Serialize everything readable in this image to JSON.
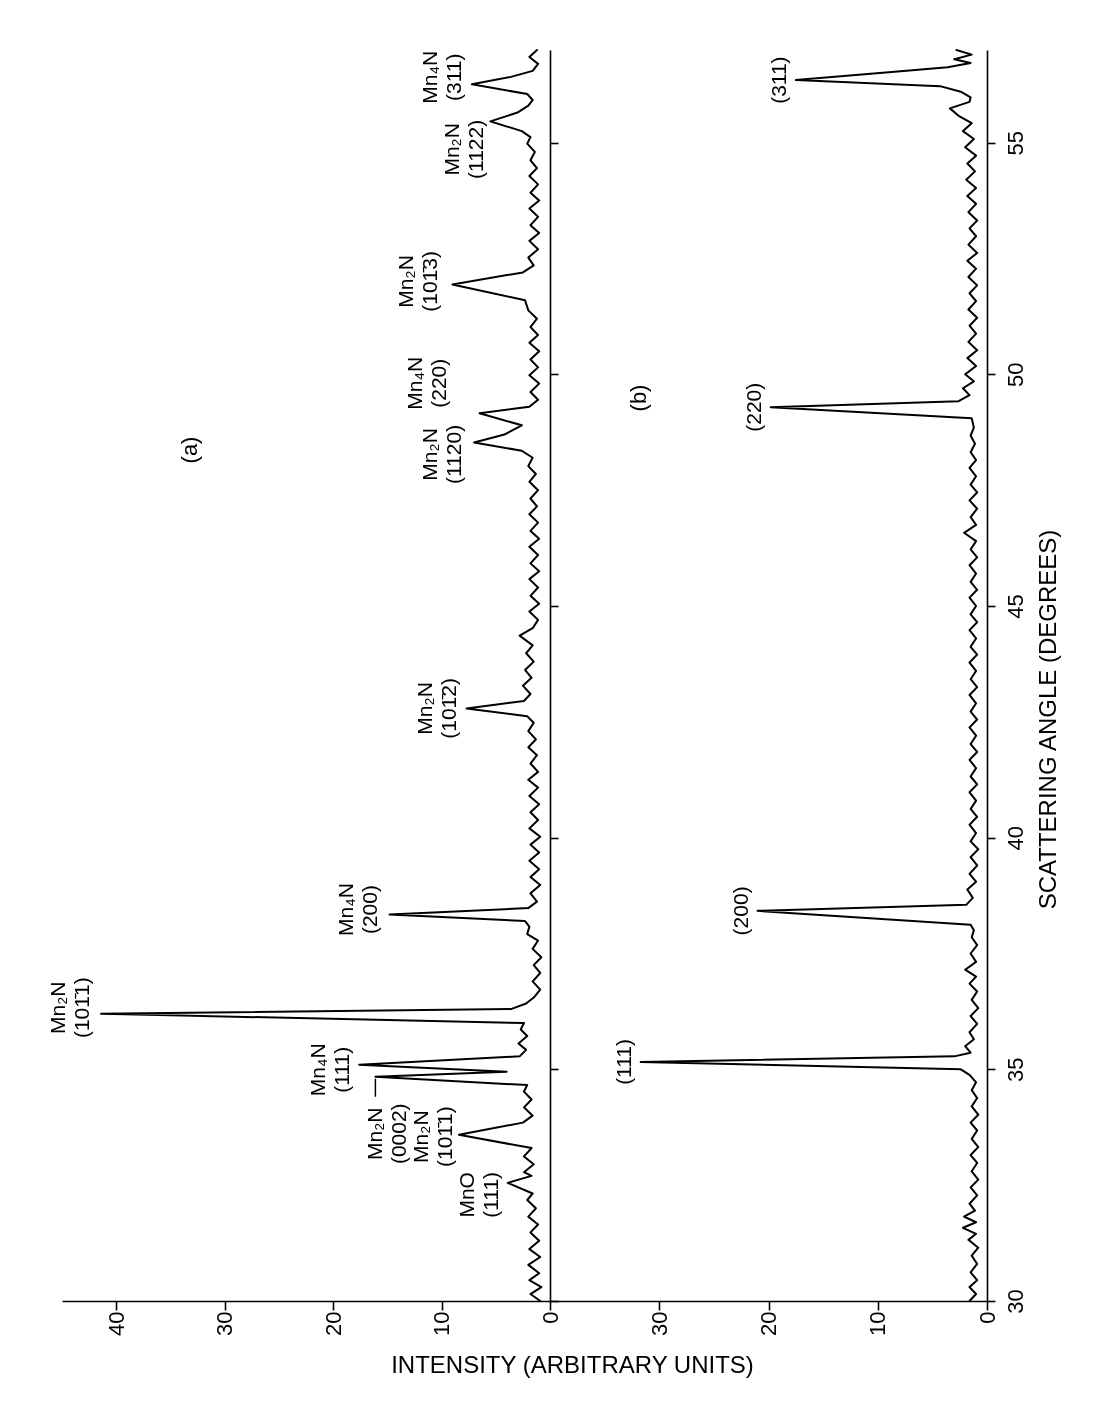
{
  "chart_data": [
    {
      "type": "line",
      "title": "(a)",
      "xlabel": "INTENSITY (ARBITRARY UNITS)",
      "color": "#000000",
      "values": [
        30.0,
        30.15,
        30.3,
        30.45,
        30.6,
        30.78,
        30.95,
        31.12,
        31.3,
        31.48,
        31.65,
        31.82,
        32.0,
        32.18,
        32.32,
        32.55,
        32.7,
        32.78,
        32.95,
        33.12,
        33.3,
        33.59,
        33.85,
        34.0,
        34.18,
        34.35,
        34.52,
        34.66,
        34.84,
        34.95,
        35.1,
        35.28,
        35.42,
        35.56,
        35.72,
        35.86,
        36.0,
        36.2,
        36.3,
        36.42,
        36.55,
        36.72,
        36.9,
        37.08,
        37.25,
        37.42,
        37.6,
        37.78,
        37.92,
        38.08,
        38.2,
        38.34,
        38.48,
        38.62,
        38.8,
        38.98,
        39.15,
        39.32,
        39.5,
        39.68,
        39.85,
        40.02,
        40.2,
        40.38,
        40.55,
        40.72,
        40.9,
        41.08,
        41.25,
        41.42,
        41.6,
        41.78,
        41.95,
        42.12,
        42.3,
        42.48,
        42.62,
        42.79,
        42.95,
        43.1,
        43.28,
        43.45,
        43.62,
        43.8,
        43.98,
        44.15,
        44.36,
        44.52,
        44.7,
        44.88,
        45.05,
        45.22,
        45.4,
        45.58,
        45.75,
        45.92,
        46.1,
        46.28,
        46.45,
        46.62,
        46.8,
        46.98,
        47.15,
        47.32,
        47.5,
        47.68,
        47.85,
        48.02,
        48.2,
        48.35,
        48.53,
        48.7,
        48.9,
        49.16,
        49.3,
        49.45,
        49.62,
        49.8,
        49.98,
        50.15,
        50.32,
        50.5,
        50.68,
        50.85,
        51.02,
        51.2,
        51.38,
        51.6,
        51.94,
        52.2,
        52.35,
        52.52,
        52.7,
        52.88,
        53.05,
        53.22,
        53.4,
        53.58,
        53.75,
        53.92,
        54.1,
        54.28,
        54.45,
        54.62,
        54.8,
        54.98,
        55.12,
        55.25,
        55.46,
        55.65,
        55.8,
        55.92,
        56.05,
        56.26,
        56.42,
        56.55,
        56.7,
        56.85,
        57.0
      ],
      "x": [
        0.9,
        1.8,
        0.8,
        1.9,
        1.0,
        2.0,
        0.9,
        1.9,
        1.0,
        1.8,
        1.1,
        2.0,
        1.3,
        2.1,
        1.6,
        3.9,
        1.7,
        2.4,
        1.5,
        2.4,
        1.7,
        8.4,
        2.5,
        1.6,
        2.4,
        1.7,
        2.4,
        2.1,
        16.1,
        4.0,
        17.6,
        2.8,
        2.2,
        2.9,
        2.1,
        2.7,
        2.4,
        41.4,
        3.6,
        2.2,
        1.5,
        0.9,
        1.6,
        0.9,
        1.5,
        0.8,
        1.6,
        1.1,
        2.1,
        1.9,
        2.3,
        14.8,
        2.0,
        1.2,
        1.8,
        0.9,
        1.8,
        1.0,
        1.9,
        1.0,
        1.8,
        0.9,
        1.9,
        1.1,
        1.8,
        1.0,
        1.9,
        1.1,
        2.0,
        1.1,
        1.8,
        1.2,
        2.0,
        1.3,
        2.0,
        1.5,
        2.1,
        7.7,
        2.4,
        1.8,
        2.5,
        1.7,
        2.3,
        1.5,
        2.2,
        1.6,
        2.8,
        1.6,
        1.1,
        1.9,
        1.0,
        1.8,
        1.1,
        1.9,
        1.0,
        1.8,
        1.1,
        1.9,
        1.0,
        1.8,
        1.1,
        1.9,
        1.2,
        1.8,
        1.1,
        1.9,
        1.3,
        2.0,
        1.6,
        2.6,
        7.0,
        4.2,
        2.6,
        6.5,
        1.9,
        1.1,
        1.8,
        1.0,
        1.9,
        1.1,
        1.8,
        1.0,
        1.9,
        1.1,
        1.8,
        1.2,
        2.0,
        2.3,
        9.0,
        2.5,
        1.5,
        2.0,
        1.1,
        1.9,
        1.0,
        1.8,
        1.1,
        1.9,
        1.0,
        1.8,
        1.1,
        1.9,
        1.2,
        1.8,
        1.4,
        2.1,
        1.8,
        2.6,
        5.5,
        3.0,
        2.0,
        1.6,
        2.1,
        7.2,
        3.6,
        1.6,
        1.1,
        1.9,
        1.2
      ],
      "xlim": [
        45,
        0
      ],
      "xticks": [
        40,
        30,
        20,
        10,
        0
      ],
      "ylim": [
        30,
        57
      ],
      "yticks": [
        30,
        35,
        40,
        45,
        50,
        55
      ],
      "tick_labels": "x",
      "annotations": [
        {
          "text": "MnO (111)",
          "x": 3.9,
          "y": 32.55
        },
        {
          "text": "Mn₂N (101̄1)",
          "x": 8.4,
          "y": 33.59
        },
        {
          "text": "Mn₂N (0002)",
          "x": 16.1,
          "y": 34.84
        },
        {
          "text": "Mn₄N (111)",
          "x": 17.6,
          "y": 35.1
        },
        {
          "text": "Mn₂N (101̄1)",
          "x": 41.4,
          "y": 36.2
        },
        {
          "text": "Mn₄N (200)",
          "x": 14.8,
          "y": 38.34
        },
        {
          "text": "Mn₂N (101̄2)",
          "x": 7.7,
          "y": 42.79
        },
        {
          "text": "Mn₂N (1120)",
          "x": 7.0,
          "y": 48.53
        },
        {
          "text": "Mn₄N (220)",
          "x": 6.5,
          "y": 49.16
        },
        {
          "text": "Mn₂N (101̄3)",
          "x": 9.0,
          "y": 51.94
        },
        {
          "text": "Mn₂N (1122)",
          "x": 5.5,
          "y": 55.46
        },
        {
          "text": "Mn₄N (311)",
          "x": 7.2,
          "y": 56.26
        }
      ]
    },
    {
      "type": "line",
      "title": "(b)",
      "ylabel": "SCATTERING ANGLE (DEGREES)",
      "color": "#000000",
      "values": [
        30.0,
        30.15,
        30.3,
        30.45,
        30.62,
        30.8,
        30.98,
        31.15,
        31.32,
        31.45,
        31.58,
        31.7,
        31.82,
        31.95,
        32.1,
        32.28,
        32.45,
        32.62,
        32.8,
        32.98,
        33.15,
        33.32,
        33.5,
        33.68,
        33.85,
        34.02,
        34.2,
        34.38,
        34.55,
        34.72,
        34.88,
        35.0,
        35.16,
        35.28,
        35.36,
        35.5,
        35.65,
        35.8,
        35.98,
        36.15,
        36.32,
        36.5,
        36.68,
        36.85,
        37.0,
        37.15,
        37.32,
        37.5,
        37.68,
        37.85,
        38.0,
        38.12,
        38.42,
        38.55,
        38.7,
        38.88,
        39.05,
        39.22,
        39.4,
        39.58,
        39.75,
        39.92,
        40.1,
        40.28,
        40.45,
        40.62,
        40.8,
        40.98,
        41.15,
        41.32,
        41.5,
        41.68,
        41.85,
        42.02,
        42.2,
        42.38,
        42.55,
        42.72,
        42.9,
        43.08,
        43.25,
        43.42,
        43.6,
        43.78,
        43.95,
        44.12,
        44.3,
        44.48,
        44.65,
        44.82,
        45.0,
        45.18,
        45.35,
        45.52,
        45.7,
        45.88,
        46.05,
        46.22,
        46.4,
        46.58,
        46.75,
        46.92,
        47.1,
        47.28,
        47.45,
        47.62,
        47.8,
        47.98,
        48.15,
        48.32,
        48.5,
        48.68,
        48.85,
        49.05,
        49.29,
        49.42,
        49.55,
        49.7,
        49.85,
        50.0,
        50.18,
        50.35,
        50.52,
        50.7,
        50.88,
        51.05,
        51.22,
        51.4,
        51.58,
        51.75,
        51.92,
        52.1,
        52.28,
        52.45,
        52.62,
        52.8,
        52.98,
        53.15,
        53.32,
        53.5,
        53.68,
        53.85,
        54.02,
        54.2,
        54.38,
        54.55,
        54.72,
        54.9,
        55.08,
        55.25,
        55.42,
        55.58,
        55.74,
        55.88,
        55.98,
        56.1,
        56.22,
        56.35,
        56.52,
        56.63,
        56.72,
        56.8,
        56.9,
        57.0
      ],
      "x": [
        1.6,
        1.0,
        1.6,
        0.9,
        1.5,
        0.9,
        1.4,
        0.8,
        1.7,
        1.0,
        2.2,
        1.0,
        2.1,
        1.1,
        1.6,
        0.9,
        1.5,
        0.8,
        1.4,
        0.9,
        1.5,
        0.8,
        1.4,
        0.9,
        1.5,
        0.8,
        1.4,
        0.9,
        1.4,
        1.0,
        1.6,
        2.4,
        31.7,
        3.0,
        1.5,
        2.0,
        1.2,
        1.6,
        0.9,
        1.5,
        0.8,
        1.4,
        0.9,
        1.6,
        1.0,
        2.0,
        1.0,
        1.5,
        0.9,
        1.4,
        1.2,
        1.5,
        21.0,
        1.9,
        1.3,
        1.8,
        1.0,
        1.6,
        0.9,
        1.5,
        0.8,
        1.5,
        1.0,
        1.6,
        0.9,
        1.5,
        1.0,
        1.6,
        0.9,
        1.5,
        1.0,
        1.6,
        0.9,
        1.5,
        1.0,
        1.6,
        0.9,
        1.5,
        1.0,
        1.6,
        0.9,
        1.5,
        1.0,
        1.6,
        0.9,
        1.5,
        1.0,
        1.6,
        0.9,
        1.5,
        1.0,
        1.6,
        0.9,
        1.5,
        1.0,
        1.6,
        0.9,
        1.5,
        1.0,
        2.1,
        1.0,
        1.5,
        0.9,
        1.6,
        0.9,
        1.5,
        1.0,
        1.6,
        1.0,
        1.5,
        1.1,
        1.5,
        1.2,
        1.4,
        19.8,
        2.6,
        1.6,
        2.2,
        1.2,
        2.0,
        1.0,
        1.8,
        0.9,
        1.7,
        1.0,
        1.6,
        0.9,
        1.7,
        1.0,
        1.6,
        0.9,
        1.7,
        1.0,
        1.8,
        0.9,
        1.7,
        1.0,
        1.6,
        0.9,
        1.7,
        1.0,
        1.8,
        1.0,
        1.9,
        1.1,
        1.8,
        1.0,
        2.0,
        1.2,
        2.2,
        1.4,
        2.6,
        3.4,
        1.6,
        1.5,
        2.4,
        4.3,
        17.5,
        9.0,
        3.6,
        1.5,
        3.0,
        1.4,
        2.8
      ],
      "xlim": [
        40,
        0
      ],
      "xticks": [
        30,
        20,
        10,
        0
      ],
      "ylim": [
        30,
        57
      ],
      "yticks": [
        30,
        35,
        40,
        45,
        50,
        55
      ],
      "annotations": [
        {
          "text": "(111)",
          "x": 31.7,
          "y": 35.16
        },
        {
          "text": "(200)",
          "x": 21.0,
          "y": 38.42
        },
        {
          "text": "(220)",
          "x": 19.8,
          "y": 49.29
        },
        {
          "text": "(311)",
          "x": 17.5,
          "y": 56.35
        }
      ]
    }
  ]
}
